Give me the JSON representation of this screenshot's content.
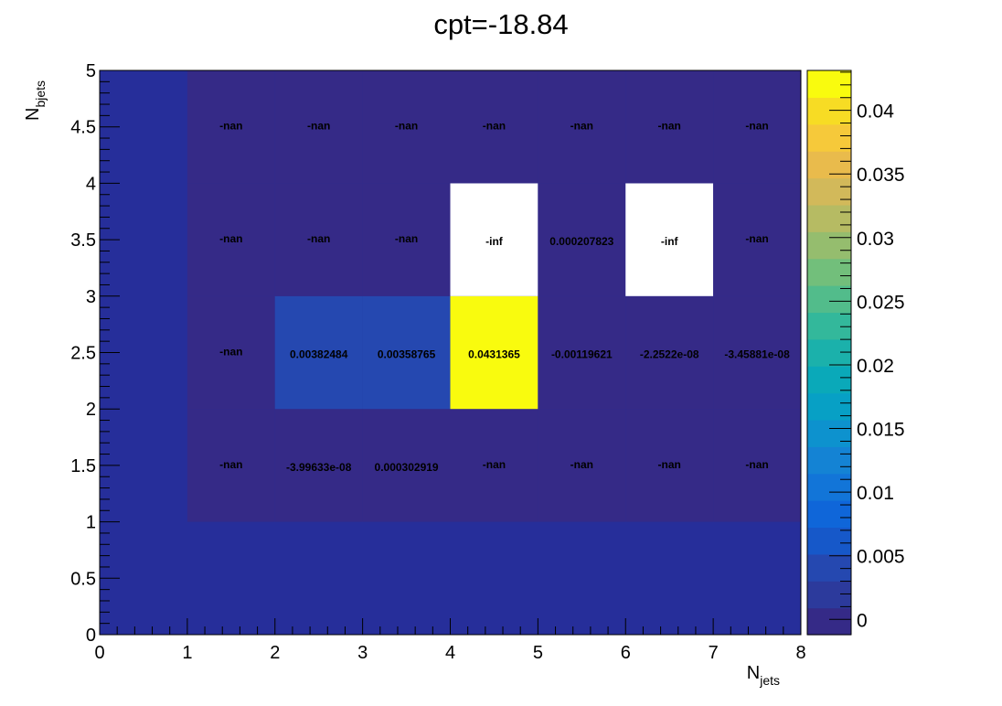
{
  "chart_data": {
    "type": "heatmap",
    "title": "cpt=-18.84",
    "xlabel": "N",
    "xlabel_sub": "jets",
    "ylabel": "N",
    "ylabel_sub": "bjets",
    "xlim": [
      0,
      8
    ],
    "ylim": [
      0,
      5
    ],
    "x_bin_edges": [
      0,
      1,
      2,
      3,
      4,
      5,
      6,
      7,
      8
    ],
    "y_bin_edges": [
      0,
      1,
      2,
      3,
      4,
      5
    ],
    "x_ticks": [
      0,
      1,
      2,
      3,
      4,
      5,
      6,
      7,
      8
    ],
    "x_tick_labels": [
      "0",
      "1",
      "2",
      "3",
      "4",
      "5",
      "6",
      "7",
      "8"
    ],
    "y_ticks": [
      0,
      0.5,
      1,
      1.5,
      2,
      2.5,
      3,
      3.5,
      4,
      4.5,
      5
    ],
    "y_tick_labels": [
      "0",
      "0.5",
      "1",
      "1.5",
      "2",
      "2.5",
      "3",
      "3.5",
      "4",
      "4.5",
      "5"
    ],
    "zlim": [
      -0.0012,
      0.0431365
    ],
    "colorbar_ticks": [
      0,
      0.005,
      0.01,
      0.015,
      0.02,
      0.025,
      0.03,
      0.035,
      0.04
    ],
    "colorbar_tick_labels": [
      "0",
      "0.005",
      "0.01",
      "0.015",
      "0.02",
      "0.025",
      "0.03",
      "0.035",
      "0.04"
    ],
    "colorbar_levels": 20,
    "colormap": [
      "#352a87",
      "#2c3a9c",
      "#2548b0",
      "#1658c9",
      "#0f66d9",
      "#1275d8",
      "#1483d4",
      "#0d92ce",
      "#07a0c5",
      "#0aa9b9",
      "#1bb1ab",
      "#33b89b",
      "#52bc8b",
      "#72bf7b",
      "#95bd6e",
      "#b6bb63",
      "#d2b95a",
      "#e9bb4c",
      "#f6c93a",
      "#f7dc24",
      "#f9fb0e"
    ],
    "empty_color": "#262e9a",
    "nan_color": "#352a87",
    "inf_color": "#ffffff",
    "cells": [
      {
        "x": 1.5,
        "y": 1.5,
        "label": "-nan",
        "kind": "nan"
      },
      {
        "x": 2.5,
        "y": 1.5,
        "label": "-3.99633e-08",
        "value": -3.99633e-08
      },
      {
        "x": 3.5,
        "y": 1.5,
        "label": "0.000302919",
        "value": 0.000302919
      },
      {
        "x": 4.5,
        "y": 1.5,
        "label": "-nan",
        "kind": "nan"
      },
      {
        "x": 5.5,
        "y": 1.5,
        "label": "-nan",
        "kind": "nan"
      },
      {
        "x": 6.5,
        "y": 1.5,
        "label": "-nan",
        "kind": "nan"
      },
      {
        "x": 7.5,
        "y": 1.5,
        "label": "-nan",
        "kind": "nan"
      },
      {
        "x": 1.5,
        "y": 2.5,
        "label": "-nan",
        "kind": "nan"
      },
      {
        "x": 2.5,
        "y": 2.5,
        "label": "0.00382484",
        "value": 0.00382484
      },
      {
        "x": 3.5,
        "y": 2.5,
        "label": "0.00358765",
        "value": 0.00358765
      },
      {
        "x": 4.5,
        "y": 2.5,
        "label": "0.0431365",
        "value": 0.0431365
      },
      {
        "x": 5.5,
        "y": 2.5,
        "label": "-0.00119621",
        "value": -0.00119621
      },
      {
        "x": 6.5,
        "y": 2.5,
        "label": "-2.2522e-08",
        "value": -2.2522e-08
      },
      {
        "x": 7.5,
        "y": 2.5,
        "label": "-3.45881e-08",
        "value": -3.45881e-08
      },
      {
        "x": 1.5,
        "y": 3.5,
        "label": "-nan",
        "kind": "nan"
      },
      {
        "x": 2.5,
        "y": 3.5,
        "label": "-nan",
        "kind": "nan"
      },
      {
        "x": 3.5,
        "y": 3.5,
        "label": "-nan",
        "kind": "nan"
      },
      {
        "x": 4.5,
        "y": 3.5,
        "label": "-inf",
        "kind": "inf"
      },
      {
        "x": 5.5,
        "y": 3.5,
        "label": "0.000207823",
        "value": 0.000207823
      },
      {
        "x": 6.5,
        "y": 3.5,
        "label": "-inf",
        "kind": "inf"
      },
      {
        "x": 7.5,
        "y": 3.5,
        "label": "-nan",
        "kind": "nan"
      },
      {
        "x": 1.5,
        "y": 4.5,
        "label": "-nan",
        "kind": "nan"
      },
      {
        "x": 2.5,
        "y": 4.5,
        "label": "-nan",
        "kind": "nan"
      },
      {
        "x": 3.5,
        "y": 4.5,
        "label": "-nan",
        "kind": "nan"
      },
      {
        "x": 4.5,
        "y": 4.5,
        "label": "-nan",
        "kind": "nan"
      },
      {
        "x": 5.5,
        "y": 4.5,
        "label": "-nan",
        "kind": "nan"
      },
      {
        "x": 6.5,
        "y": 4.5,
        "label": "-nan",
        "kind": "nan"
      },
      {
        "x": 7.5,
        "y": 4.5,
        "label": "-nan",
        "kind": "nan"
      }
    ]
  }
}
